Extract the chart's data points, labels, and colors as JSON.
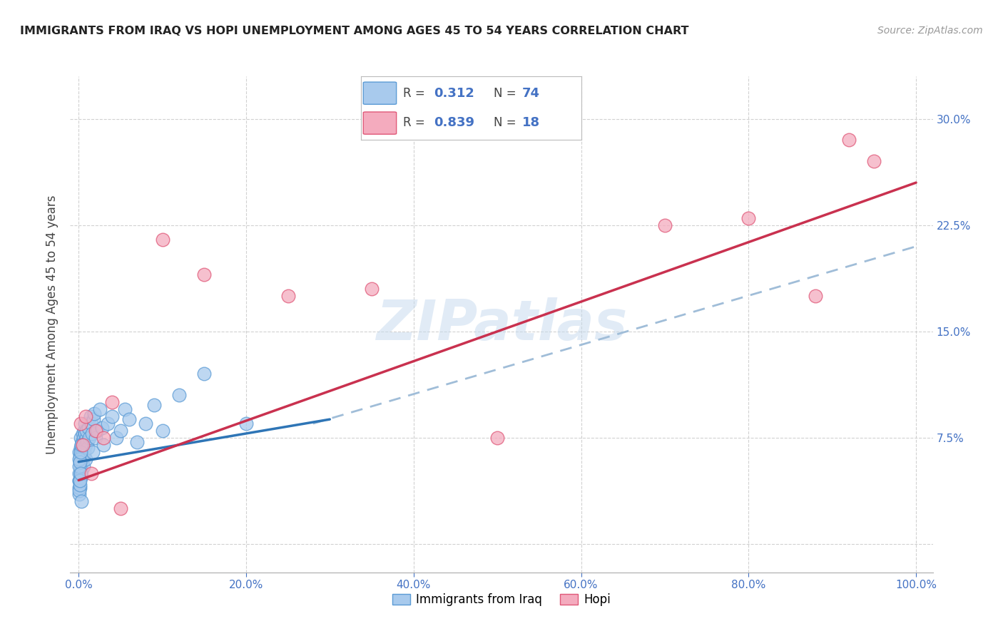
{
  "title": "IMMIGRANTS FROM IRAQ VS HOPI UNEMPLOYMENT AMONG AGES 45 TO 54 YEARS CORRELATION CHART",
  "source": "Source: ZipAtlas.com",
  "ylabel": "Unemployment Among Ages 45 to 54 years",
  "xlim": [
    -1.0,
    102.0
  ],
  "ylim": [
    -2.0,
    33.0
  ],
  "xticks": [
    0,
    20,
    40,
    60,
    80,
    100
  ],
  "yticks": [
    0,
    7.5,
    15.0,
    22.5,
    30.0
  ],
  "iraq_color": "#A8CAED",
  "iraq_edge_color": "#5B9BD5",
  "hopi_color": "#F4ABBE",
  "hopi_edge_color": "#E05878",
  "iraq_line_color": "#2E75B6",
  "hopi_line_color": "#C9314F",
  "dashed_color": "#A0BDD8",
  "watermark_color": "#C5D9EE",
  "legend_r_iraq": "0.312",
  "legend_n_iraq": "74",
  "legend_r_hopi": "0.839",
  "legend_n_hopi": "18",
  "iraq_x": [
    0.05,
    0.08,
    0.1,
    0.12,
    0.15,
    0.18,
    0.2,
    0.22,
    0.25,
    0.28,
    0.3,
    0.32,
    0.35,
    0.38,
    0.4,
    0.42,
    0.45,
    0.48,
    0.5,
    0.52,
    0.55,
    0.58,
    0.6,
    0.62,
    0.65,
    0.68,
    0.7,
    0.72,
    0.75,
    0.8,
    0.85,
    0.9,
    0.95,
    1.0,
    1.1,
    1.2,
    1.3,
    1.4,
    1.5,
    1.6,
    1.7,
    1.8,
    1.9,
    2.0,
    2.2,
    2.5,
    2.8,
    3.0,
    3.5,
    4.0,
    4.5,
    5.0,
    5.5,
    6.0,
    7.0,
    8.0,
    9.0,
    10.0,
    12.0,
    15.0,
    0.03,
    0.04,
    0.06,
    0.07,
    0.09,
    0.11,
    0.13,
    0.16,
    0.19,
    0.23,
    0.26,
    0.29,
    0.33,
    20.0
  ],
  "iraq_y": [
    5.0,
    4.5,
    6.5,
    5.8,
    4.0,
    6.2,
    5.5,
    7.5,
    5.0,
    6.8,
    7.0,
    5.2,
    4.8,
    6.5,
    7.2,
    6.0,
    5.8,
    7.8,
    6.5,
    7.0,
    6.2,
    5.5,
    7.5,
    6.8,
    8.0,
    7.2,
    6.5,
    7.8,
    8.5,
    7.0,
    6.0,
    7.5,
    8.0,
    7.2,
    6.8,
    8.2,
    7.5,
    9.0,
    8.5,
    7.8,
    6.5,
    8.8,
    9.2,
    7.5,
    8.0,
    9.5,
    8.2,
    7.0,
    8.5,
    9.0,
    7.5,
    8.0,
    9.5,
    8.8,
    7.2,
    8.5,
    9.8,
    8.0,
    10.5,
    12.0,
    3.5,
    4.0,
    4.5,
    3.8,
    5.5,
    6.0,
    4.2,
    5.8,
    4.5,
    6.5,
    5.0,
    3.0,
    7.0,
    8.5
  ],
  "hopi_x": [
    0.2,
    0.5,
    0.8,
    1.5,
    2.0,
    3.0,
    4.0,
    5.0,
    10.0,
    15.0,
    25.0,
    35.0,
    50.0,
    70.0,
    80.0,
    88.0,
    92.0,
    95.0
  ],
  "hopi_y": [
    8.5,
    7.0,
    9.0,
    5.0,
    8.0,
    7.5,
    10.0,
    2.5,
    21.5,
    19.0,
    17.5,
    18.0,
    7.5,
    22.5,
    23.0,
    17.5,
    28.5,
    27.0
  ],
  "iraq_reg_x0": 0,
  "iraq_reg_x1": 30,
  "iraq_reg_y0": 5.8,
  "iraq_reg_y1": 8.8,
  "iraq_dash_x0": 28,
  "iraq_dash_x1": 100,
  "iraq_dash_y0": 8.5,
  "iraq_dash_y1": 21.0,
  "hopi_reg_x0": 0,
  "hopi_reg_x1": 100,
  "hopi_reg_y0": 4.5,
  "hopi_reg_y1": 25.5
}
